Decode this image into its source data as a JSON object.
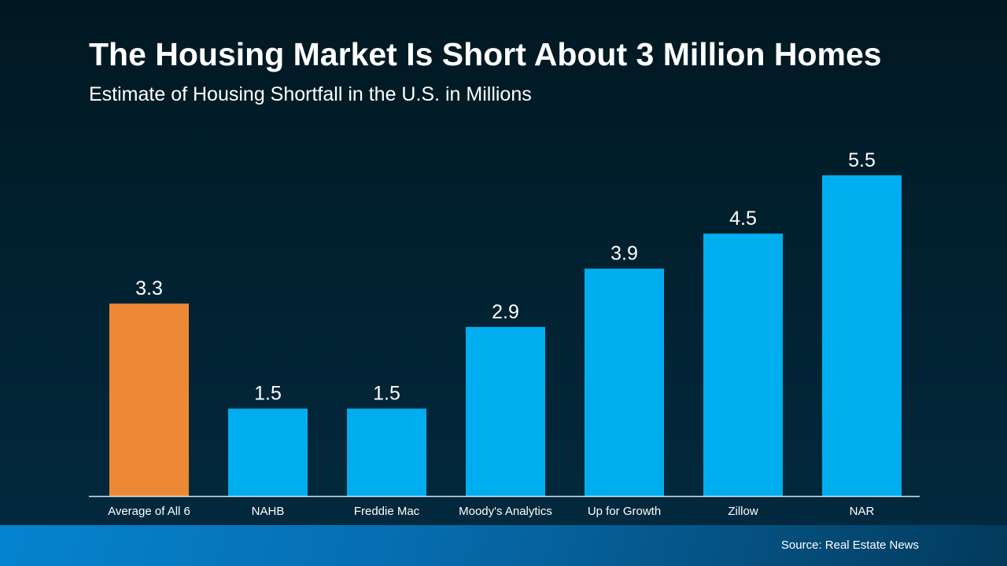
{
  "chart_data": {
    "type": "bar",
    "title": "The Housing Market Is Short About 3 Million Homes",
    "subtitle": "Estimate of Housing Shortfall in the U.S. in Millions",
    "categories": [
      "Average of All 6",
      "NAHB",
      "Freddie Mac",
      "Moody's Analytics",
      "Up for Growth",
      "Zillow",
      "NAR"
    ],
    "values": [
      3.3,
      1.5,
      1.5,
      2.9,
      3.9,
      4.5,
      5.5
    ],
    "colors": [
      "#ed8936",
      "#00aeef",
      "#00aeef",
      "#00aeef",
      "#00aeef",
      "#00aeef",
      "#00aeef"
    ],
    "xlabel": "",
    "ylabel": "",
    "ylim": [
      0,
      5.5
    ],
    "grid": false,
    "data_labels": true
  },
  "footer": {
    "source": "Source: Real Estate News"
  }
}
